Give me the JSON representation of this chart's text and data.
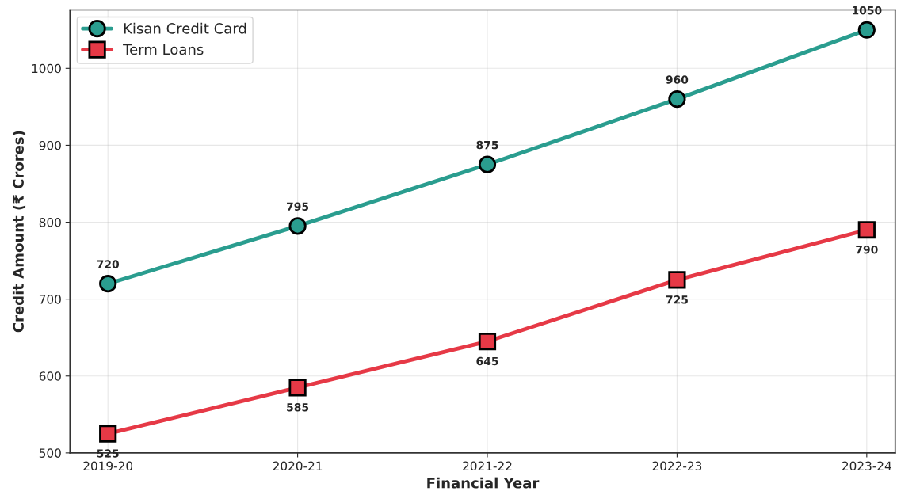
{
  "chart_data": {
    "type": "line",
    "xlabel": "Financial Year",
    "ylabel": "Credit Amount (₹ Crores)",
    "categories": [
      "2019-20",
      "2020-21",
      "2021-22",
      "2022-23",
      "2023-24"
    ],
    "series": [
      {
        "name": "Kisan Credit Card",
        "color": "#2a9d8f",
        "marker": "circle",
        "values": [
          720,
          795,
          875,
          960,
          1050
        ]
      },
      {
        "name": "Term Loans",
        "color": "#e63946",
        "marker": "square",
        "values": [
          525,
          585,
          645,
          725,
          790
        ]
      }
    ],
    "ylim": [
      500,
      1076
    ],
    "yticks": [
      500,
      600,
      700,
      800,
      900,
      1000
    ],
    "grid": true,
    "legend": "top left",
    "data_labels": true,
    "line_style": "solid"
  }
}
